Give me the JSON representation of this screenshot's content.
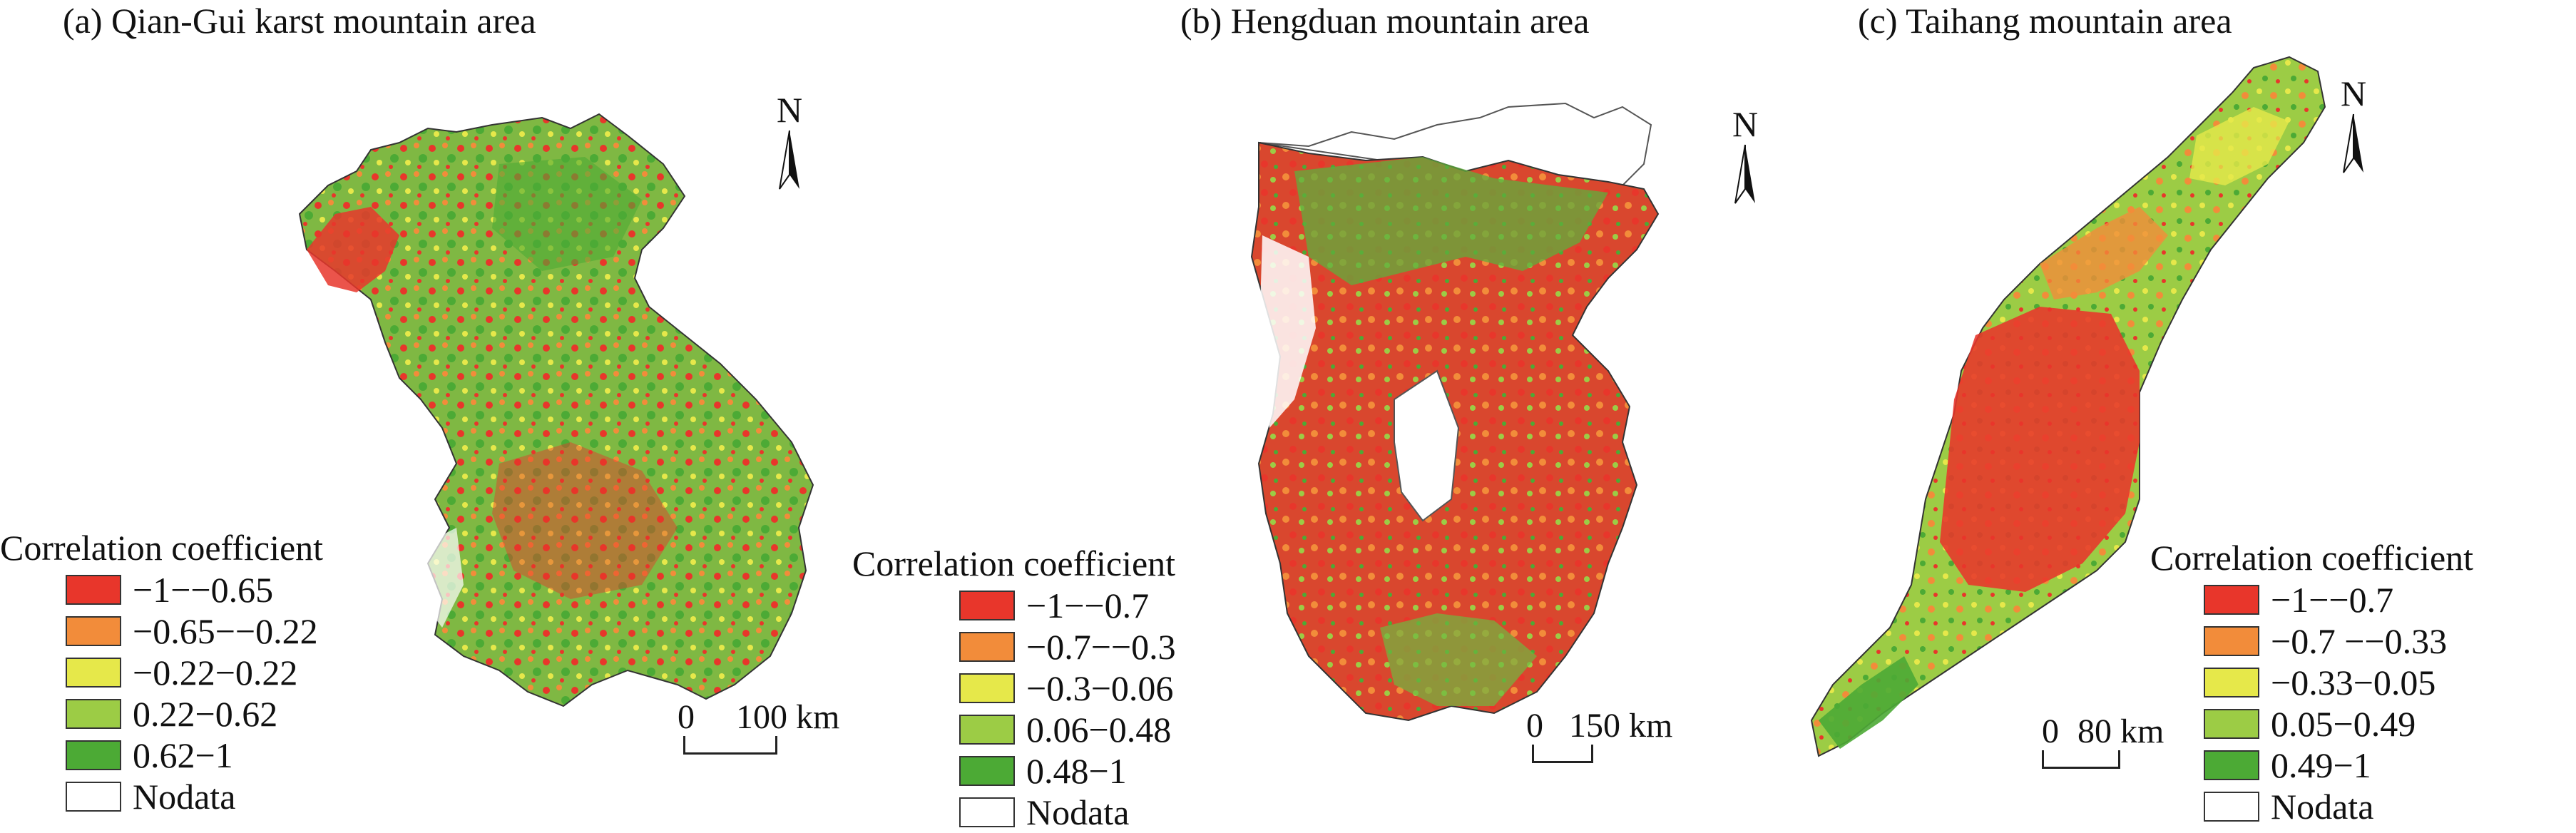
{
  "panels": [
    {
      "id": "a",
      "title": "(a) Qian-Gui karst mountain area",
      "north_label": "N",
      "scale_zero": "0",
      "scale_value": "100 km",
      "legend": {
        "title": "Correlation coefficient",
        "items": [
          {
            "label": "−1−−0.65",
            "color": "#e8362b"
          },
          {
            "label": "−0.65−−0.22",
            "color": "#f28c3a"
          },
          {
            "label": "−0.22−0.22",
            "color": "#e6e84a"
          },
          {
            "label": "0.22−0.62",
            "color": "#9ccc45"
          },
          {
            "label": "0.62−1",
            "color": "#4caa35"
          },
          {
            "label": "Nodata",
            "color": "#ffffff"
          }
        ]
      }
    },
    {
      "id": "b",
      "title": "(b) Hengduan mountain area",
      "north_label": "N",
      "scale_zero": "0",
      "scale_value": "150 km",
      "legend": {
        "title": "Correlation coefficient",
        "items": [
          {
            "label": "−1−−0.7",
            "color": "#e8362b"
          },
          {
            "label": "−0.7−−0.3",
            "color": "#f28c3a"
          },
          {
            "label": "−0.3−0.06",
            "color": "#e6e84a"
          },
          {
            "label": "0.06−0.48",
            "color": "#9ccc45"
          },
          {
            "label": "0.48−1",
            "color": "#4caa35"
          },
          {
            "label": "Nodata",
            "color": "#ffffff"
          }
        ]
      }
    },
    {
      "id": "c",
      "title": "(c) Taihang mountain area",
      "north_label": "N",
      "scale_zero": "0",
      "scale_value": "80 km",
      "legend": {
        "title": "Correlation coefficient",
        "items": [
          {
            "label": "−1−−0.7",
            "color": "#e8362b"
          },
          {
            "label": "−0.7 −−0.33",
            "color": "#f28c3a"
          },
          {
            "label": "−0.33−0.05",
            "color": "#e6e84a"
          },
          {
            "label": "0.05−0.49",
            "color": "#9ccc45"
          },
          {
            "label": "0.49−1",
            "color": "#4caa35"
          },
          {
            "label": "Nodata",
            "color": "#ffffff"
          }
        ]
      }
    }
  ]
}
